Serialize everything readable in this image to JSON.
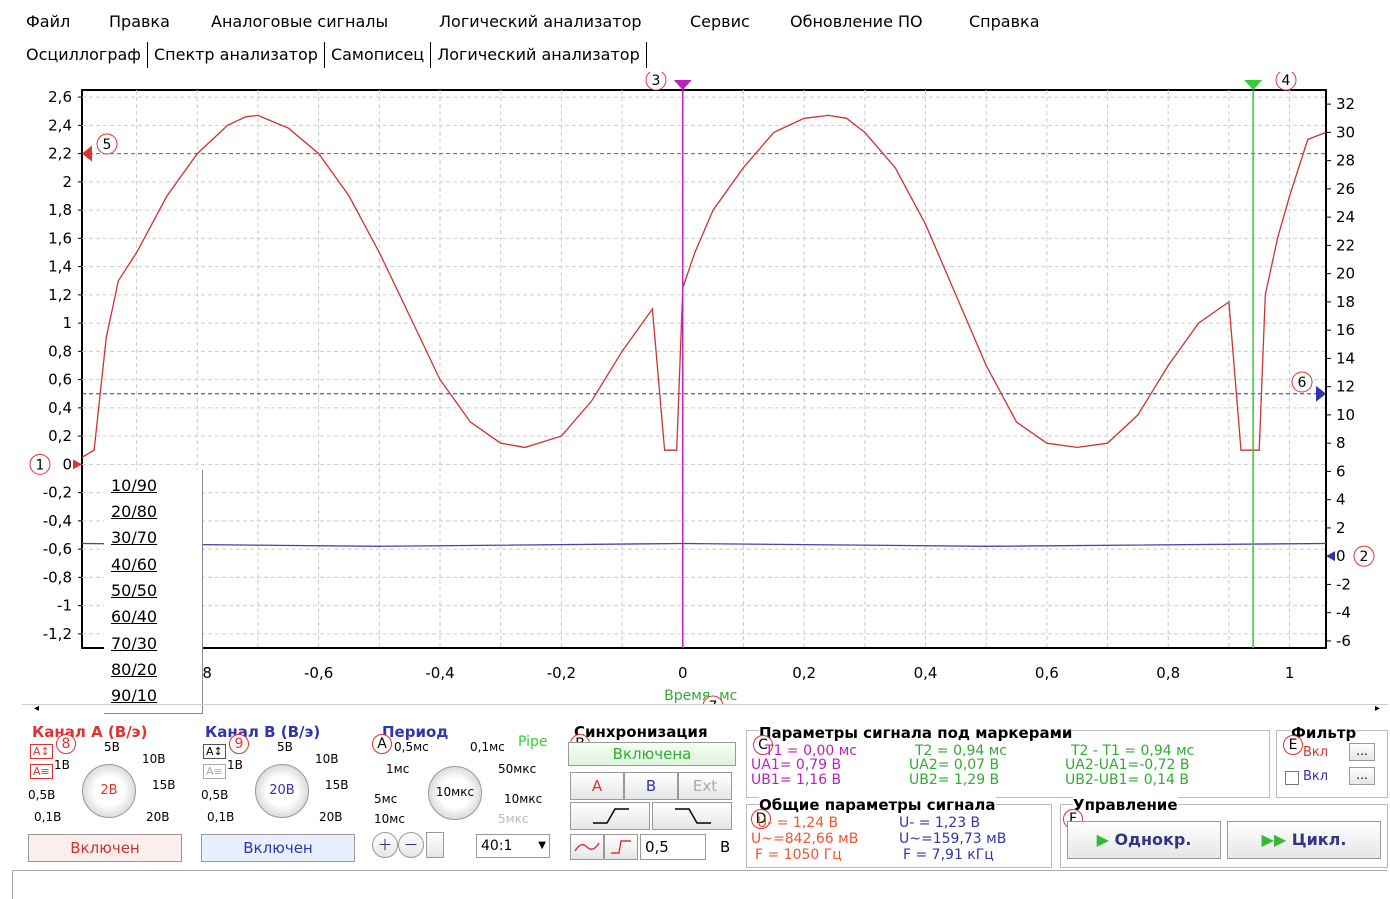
{
  "menu": [
    "Файл",
    "Правка",
    "Аналоговые сигналы",
    "Логический анализатор",
    "Сервис",
    "Обновление ПО",
    "Справка"
  ],
  "tabs": [
    "Осциллограф",
    "Спектр анализатор",
    "Самописец",
    "Логический анализатор"
  ],
  "chart_data": {
    "type": "line",
    "xlabel": "Время, мс",
    "xlim": [
      -0.99,
      1.06
    ],
    "x_ticks": [
      "-0,8",
      "-0,6",
      "-0,4",
      "-0,2",
      "0",
      "0,2",
      "0,4",
      "0,6",
      "0,8",
      "1"
    ],
    "ylim_left": [
      -1.3,
      2.65
    ],
    "y_ticks_left": [
      "2,6",
      "2,4",
      "2,2",
      "2",
      "1,8",
      "1,6",
      "1,4",
      "1,2",
      "1",
      "0,8",
      "0,6",
      "0,4",
      "0,2",
      "0",
      "-0,2",
      "-0,4",
      "-0,6",
      "-0,8",
      "-1",
      "-1,2"
    ],
    "ylim_right": [
      -6.5,
      33
    ],
    "y_ticks_right": [
      "32",
      "30",
      "28",
      "26",
      "24",
      "22",
      "20",
      "18",
      "16",
      "14",
      "12",
      "10",
      "8",
      "6",
      "4",
      "2",
      "0",
      "-2",
      "-4",
      "-6"
    ],
    "series": [
      {
        "color": "#cc3333",
        "x": [
          -0.99,
          -0.97,
          -0.95,
          -0.93,
          -0.9,
          -0.85,
          -0.8,
          -0.75,
          -0.72,
          -0.7,
          -0.65,
          -0.6,
          -0.55,
          -0.5,
          -0.45,
          -0.4,
          -0.35,
          -0.3,
          -0.26,
          -0.2,
          -0.15,
          -0.1,
          -0.05,
          -0.04,
          -0.03,
          -0.02,
          -0.01,
          0.0,
          0.02,
          0.05,
          0.1,
          0.15,
          0.2,
          0.24,
          0.27,
          0.3,
          0.35,
          0.4,
          0.45,
          0.5,
          0.55,
          0.6,
          0.65,
          0.7,
          0.75,
          0.8,
          0.85,
          0.9,
          0.92,
          0.93,
          0.95,
          0.96,
          0.98,
          1.0,
          1.03,
          1.06
        ],
        "y": [
          0.05,
          0.1,
          0.9,
          1.3,
          1.5,
          1.9,
          2.2,
          2.4,
          2.46,
          2.47,
          2.38,
          2.2,
          1.9,
          1.5,
          1.05,
          0.6,
          0.3,
          0.15,
          0.12,
          0.2,
          0.45,
          0.8,
          1.1,
          0.6,
          0.1,
          0.1,
          0.1,
          1.25,
          1.5,
          1.8,
          2.1,
          2.35,
          2.45,
          2.47,
          2.45,
          2.35,
          2.1,
          1.7,
          1.2,
          0.7,
          0.3,
          0.15,
          0.12,
          0.15,
          0.35,
          0.7,
          1.0,
          1.15,
          0.1,
          0.1,
          0.1,
          1.2,
          1.6,
          1.9,
          2.3,
          2.35
        ]
      },
      {
        "color": "#4444aa",
        "x": [
          -0.99,
          -0.5,
          0.0,
          0.5,
          1.06
        ],
        "y": [
          -0.56,
          -0.58,
          -0.56,
          -0.58,
          -0.56
        ]
      }
    ],
    "cursors": {
      "t1": 0.0,
      "t2": 0.94,
      "level_a": 2.2,
      "level_b": 0.5
    }
  },
  "dropdown": [
    "10/90",
    "20/80",
    "30/70",
    "40/60",
    "50/50",
    "60/40",
    "70/30",
    "80/20",
    "90/10"
  ],
  "markers": {
    "m1": "1",
    "m2": "2",
    "m3": "3",
    "m4": "4",
    "m5": "5",
    "m6": "6",
    "m7": "7"
  },
  "panels": {
    "chA": {
      "title": "Канал A (В/э)",
      "circle": "8",
      "button": "Включен",
      "knob": "2В",
      "scale": [
        "5В",
        "1В",
        "10В",
        "0,5В",
        "15В",
        "0,1В",
        "20В"
      ]
    },
    "chB": {
      "title": "Канал B (В/э)",
      "circle": "9",
      "button": "Включен",
      "knob": "20В",
      "scale": [
        "5В",
        "1В",
        "10В",
        "0,5В",
        "15В",
        "0,1В",
        "20В"
      ]
    },
    "period": {
      "title": "Период",
      "circle": "A",
      "pipe": "Pipe",
      "knob": "10мкс",
      "scale": [
        "0,5мс",
        "0,1мс",
        "1мс",
        "50мкс",
        "5мс",
        "10мкс",
        "10мс",
        "5мкс"
      ],
      "ratio": "40:1"
    },
    "sync": {
      "title": "Синхронизация",
      "circle": "B",
      "state": "Включена",
      "a": "A",
      "b": "B",
      "ext": "Ext",
      "level": "0,5",
      "unit": "В"
    },
    "params": {
      "title": "Параметры сигнала под маркерами",
      "circle": "C",
      "r1": [
        "T1 = 0,00 мс",
        "T2 = 0,94 мс",
        "T2 - T1 = 0,94 мс"
      ],
      "r2": [
        "UA1= 0,79 В",
        "UA2= 0,07 В",
        "UA2-UA1=-0,72 В"
      ],
      "r3": [
        "UB1= 1,16 В",
        "UB2= 1,29 В",
        "UB2-UB1= 0,14 В"
      ]
    },
    "general": {
      "title": "Общие параметры сигнала",
      "circle": "D",
      "c1": [
        "U- = 1,24 В",
        "U~=842,66 мВ",
        "F = 1050 Гц"
      ],
      "c2": [
        "U- = 1,23 В",
        "U~=159,73 мВ",
        "F = 7,91 кГц"
      ]
    },
    "filter": {
      "title": "Фильтр",
      "circle": "E",
      "on": "Вкл",
      "dots": "..."
    },
    "control": {
      "title": "Управление",
      "circle": "F",
      "single": "Однокр.",
      "cycle": "Цикл."
    }
  }
}
